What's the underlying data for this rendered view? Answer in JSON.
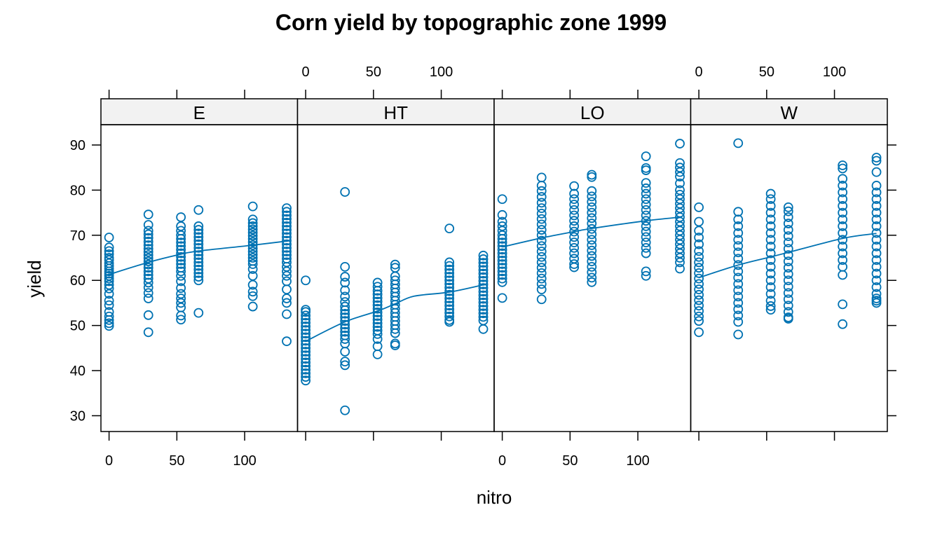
{
  "chart_data": {
    "type": "scatter",
    "title": "Corn yield by topographic zone 1999",
    "xlabel": "nitro",
    "ylabel": "yield",
    "xlim": [
      -6,
      139
    ],
    "ylim": [
      26.5,
      94.5
    ],
    "x_ticks": [
      0,
      50,
      100
    ],
    "y_ticks": [
      30,
      40,
      50,
      60,
      70,
      80,
      90
    ],
    "nitro_levels": [
      0,
      29,
      53,
      66,
      106,
      131
    ],
    "point_color": "#0072B2",
    "strip_color": "#F2F2F2",
    "grid": false,
    "panels": [
      {
        "name": "E",
        "groups": [
          {
            "x": 0,
            "y": [
              69.5,
              67.3,
              66.5,
              65.8,
              65.0,
              64.5,
              63.8,
              63.2,
              62.6,
              62.0,
              61.5,
              61.0,
              60.4,
              59.8,
              59.0,
              58.2,
              57.0,
              55.5,
              54.5,
              53.0,
              52.0,
              51.2,
              50.5,
              49.9
            ]
          },
          {
            "x": 29,
            "y": [
              74.6,
              72.3,
              71.0,
              70.2,
              69.4,
              68.6,
              67.8,
              67.0,
              66.3,
              65.6,
              64.9,
              64.2,
              63.5,
              62.8,
              62.0,
              61.2,
              60.4,
              59.5,
              58.4,
              57.2,
              56.0,
              52.3,
              48.5
            ]
          },
          {
            "x": 53,
            "y": [
              74.0,
              72.0,
              71.0,
              70.0,
              69.2,
              68.4,
              67.6,
              66.8,
              66.0,
              65.2,
              64.4,
              63.6,
              62.8,
              62.0,
              61.0,
              59.8,
              58.3,
              57.0,
              56.0,
              55.0,
              54.0,
              52.2,
              51.3
            ]
          },
          {
            "x": 66,
            "y": [
              75.6,
              72.0,
              71.2,
              70.4,
              69.6,
              68.8,
              68.0,
              67.2,
              66.4,
              65.6,
              64.8,
              64.0,
              63.2,
              62.4,
              61.6,
              60.8,
              60.0,
              52.8
            ]
          },
          {
            "x": 106,
            "y": [
              76.4,
              73.5,
              72.7,
              72.0,
              71.3,
              70.6,
              69.9,
              69.2,
              68.5,
              67.8,
              67.1,
              66.4,
              65.7,
              65.0,
              64.3,
              63.6,
              62.5,
              61.0,
              59.0,
              57.5,
              56.5,
              54.2
            ]
          },
          {
            "x": 131,
            "y": [
              76.0,
              75.2,
              74.4,
              73.6,
              72.8,
              72.0,
              71.2,
              70.4,
              69.6,
              68.8,
              68.0,
              67.2,
              66.4,
              65.6,
              64.8,
              64.0,
              63.0,
              62.0,
              61.0,
              59.8,
              58.0,
              56.0,
              55.0,
              52.5,
              46.5
            ]
          }
        ],
        "smooth": {
          "x": [
            0,
            29,
            53,
            66,
            106,
            131
          ],
          "y": [
            61.3,
            64.0,
            65.8,
            66.5,
            67.8,
            68.7
          ]
        }
      },
      {
        "name": "HT",
        "groups": [
          {
            "x": 0,
            "y": [
              60.0,
              53.5,
              53.0,
              52.2,
              51.4,
              50.6,
              49.8,
              49.0,
              48.2,
              47.4,
              46.6,
              45.8,
              45.0,
              44.2,
              43.4,
              42.6,
              41.8,
              41.0,
              40.2,
              39.4,
              38.6,
              37.8
            ]
          },
          {
            "x": 29,
            "y": [
              79.6,
              63.0,
              60.8,
              59.5,
              57.8,
              56.4,
              55.2,
              54.2,
              53.4,
              52.6,
              51.8,
              51.0,
              50.2,
              49.4,
              48.6,
              47.8,
              47.0,
              46.0,
              44.2,
              42.0,
              41.2,
              31.2
            ]
          },
          {
            "x": 53,
            "y": [
              59.5,
              58.6,
              57.7,
              56.9,
              56.1,
              55.3,
              54.5,
              53.7,
              52.9,
              52.1,
              51.3,
              50.5,
              49.7,
              48.9,
              48.1,
              47.0,
              45.4,
              43.6
            ]
          },
          {
            "x": 66,
            "y": [
              63.5,
              62.8,
              60.9,
              60.0,
              59.1,
              58.2,
              57.3,
              56.4,
              55.5,
              54.6,
              53.7,
              52.8,
              51.9,
              51.0,
              50.1,
              49.2,
              48.3,
              46.0,
              45.6
            ]
          },
          {
            "x": 106,
            "y": [
              71.5,
              64.0,
              63.2,
              62.4,
              61.6,
              60.8,
              60.0,
              59.2,
              58.4,
              57.6,
              56.8,
              56.0,
              55.2,
              54.4,
              53.6,
              52.8,
              52.0,
              51.2,
              50.8
            ]
          },
          {
            "x": 131,
            "y": [
              65.5,
              64.7,
              63.9,
              63.1,
              62.3,
              61.5,
              60.7,
              59.9,
              59.1,
              58.3,
              57.5,
              56.7,
              55.9,
              55.1,
              54.3,
              53.5,
              52.7,
              51.9,
              51.1,
              49.2
            ]
          }
        ],
        "smooth": {
          "x": [
            0,
            29,
            53,
            66,
            80,
            106,
            131
          ],
          "y": [
            46.5,
            50.8,
            53.2,
            54.8,
            56.5,
            57.4,
            59.0
          ]
        }
      },
      {
        "name": "LO",
        "groups": [
          {
            "x": 0,
            "y": [
              78.0,
              74.5,
              73.0,
              72.0,
              71.0,
              70.0,
              69.2,
              68.4,
              67.6,
              66.8,
              66.0,
              65.2,
              64.4,
              63.6,
              62.8,
              62.0,
              61.2,
              60.4,
              59.6,
              56.1
            ]
          },
          {
            "x": 29,
            "y": [
              82.8,
              81.0,
              79.8,
              78.5,
              77.2,
              76.0,
              74.8,
              73.6,
              72.4,
              71.2,
              70.0,
              68.8,
              67.6,
              66.4,
              65.2,
              64.0,
              62.8,
              61.6,
              60.4,
              59.2,
              58.0,
              55.8
            ]
          },
          {
            "x": 53,
            "y": [
              80.9,
              79.2,
              78.0,
              76.8,
              75.6,
              74.4,
              73.2,
              72.0,
              70.8,
              69.6,
              68.4,
              67.2,
              66.0,
              64.8,
              63.6,
              62.9
            ]
          },
          {
            "x": 66,
            "y": [
              83.4,
              82.9,
              79.8,
              78.6,
              77.4,
              76.2,
              75.0,
              73.8,
              72.6,
              71.4,
              70.2,
              69.0,
              67.8,
              66.6,
              65.4,
              64.2,
              63.0,
              61.8,
              60.6,
              59.6
            ]
          },
          {
            "x": 106,
            "y": [
              87.5,
              84.9,
              84.4,
              81.6,
              80.4,
              79.2,
              78.0,
              76.8,
              75.6,
              74.4,
              73.2,
              72.0,
              70.8,
              69.6,
              68.4,
              67.2,
              66.0,
              62.0,
              61.0
            ]
          },
          {
            "x": 131,
            "y": [
              90.3,
              86.0,
              85.0,
              84.0,
              83.0,
              81.5,
              80.0,
              79.0,
              78.0,
              77.0,
              76.0,
              75.0,
              74.0,
              73.0,
              72.0,
              71.0,
              70.0,
              69.0,
              68.0,
              67.0,
              66.0,
              65.0,
              64.0,
              62.6
            ]
          }
        ],
        "smooth": {
          "x": [
            0,
            29,
            53,
            66,
            106,
            131
          ],
          "y": [
            67.4,
            69.4,
            70.8,
            71.5,
            73.2,
            74.0
          ]
        }
      },
      {
        "name": "W",
        "groups": [
          {
            "x": 0,
            "y": [
              76.2,
              73.0,
              71.0,
              69.5,
              68.0,
              66.5,
              65.2,
              64.0,
              62.8,
              61.6,
              60.4,
              59.2,
              58.0,
              56.8,
              55.6,
              54.4,
              53.2,
              52.0,
              51.0,
              48.5
            ]
          },
          {
            "x": 29,
            "y": [
              90.4,
              75.2,
              73.5,
              72.0,
              70.5,
              69.0,
              67.6,
              66.2,
              64.8,
              63.4,
              62.0,
              60.6,
              59.2,
              57.8,
              56.4,
              55.0,
              53.6,
              52.2,
              50.8,
              48.0
            ]
          },
          {
            "x": 53,
            "y": [
              79.2,
              78.0,
              76.5,
              75.0,
              73.5,
              72.0,
              70.5,
              69.0,
              67.5,
              66.0,
              64.5,
              63.0,
              61.5,
              60.0,
              58.5,
              57.0,
              55.5,
              54.3,
              53.5
            ]
          },
          {
            "x": 66,
            "y": [
              76.2,
              75.3,
              74.0,
              72.6,
              71.2,
              69.8,
              68.4,
              67.0,
              65.6,
              64.2,
              62.8,
              61.4,
              60.0,
              58.6,
              57.2,
              55.8,
              54.4,
              53.0,
              51.8,
              51.5
            ]
          },
          {
            "x": 106,
            "y": [
              85.5,
              84.8,
              82.5,
              81.0,
              79.5,
              78.0,
              76.5,
              75.0,
              73.5,
              72.0,
              70.5,
              69.0,
              67.5,
              66.0,
              64.5,
              63.0,
              61.2,
              54.7,
              50.3
            ]
          },
          {
            "x": 131,
            "y": [
              87.2,
              86.5,
              84.0,
              81.0,
              79.5,
              78.0,
              76.5,
              75.0,
              73.5,
              72.0,
              70.5,
              69.0,
              67.5,
              66.0,
              64.5,
              63.0,
              61.5,
              60.0,
              58.5,
              57.0,
              56.0,
              55.5,
              55.0
            ]
          }
        ],
        "smooth": {
          "x": [
            0,
            29,
            53,
            66,
            106,
            131
          ],
          "y": [
            60.6,
            63.4,
            65.2,
            66.2,
            69.3,
            70.4
          ]
        }
      }
    ]
  }
}
